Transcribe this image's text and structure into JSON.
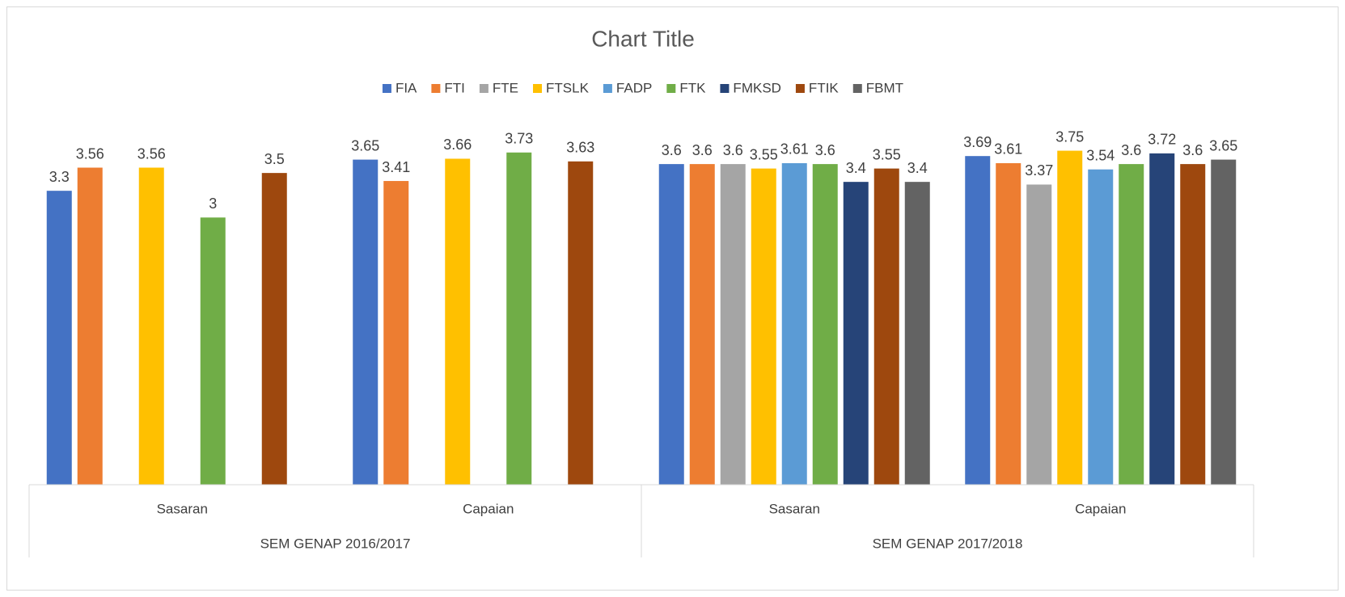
{
  "chart_data": {
    "type": "bar",
    "title": "Chart Title",
    "categories": [
      "Sasaran",
      "Capaian",
      "Sasaran",
      "Capaian"
    ],
    "category_groups": [
      "SEM GENAP 2016/2017",
      "SEM GENAP 2017/2018"
    ],
    "ylim": [
      0,
      4
    ],
    "legend": "top",
    "series": [
      {
        "name": "FIA",
        "color": "#4472c4",
        "values": [
          3.3,
          3.65,
          3.6,
          3.69
        ]
      },
      {
        "name": "FTI",
        "color": "#ed7d31",
        "values": [
          3.56,
          3.41,
          3.6,
          3.61
        ]
      },
      {
        "name": "FTE",
        "color": "#a5a5a5",
        "values": [
          null,
          null,
          3.6,
          3.37
        ]
      },
      {
        "name": "FTSLK",
        "color": "#ffc000",
        "values": [
          3.56,
          3.66,
          3.55,
          3.75
        ]
      },
      {
        "name": "FADP",
        "color": "#5b9bd5",
        "values": [
          null,
          null,
          3.61,
          3.54
        ]
      },
      {
        "name": "FTK",
        "color": "#70ad47",
        "values": [
          3,
          3.73,
          3.6,
          3.6
        ]
      },
      {
        "name": "FMKSD",
        "color": "#264478",
        "values": [
          null,
          null,
          3.4,
          3.72
        ]
      },
      {
        "name": "FTIK",
        "color": "#9e480e",
        "values": [
          3.5,
          3.63,
          3.55,
          3.6
        ]
      },
      {
        "name": "FBMT",
        "color": "#636363",
        "values": [
          null,
          null,
          3.4,
          3.65
        ]
      }
    ]
  }
}
